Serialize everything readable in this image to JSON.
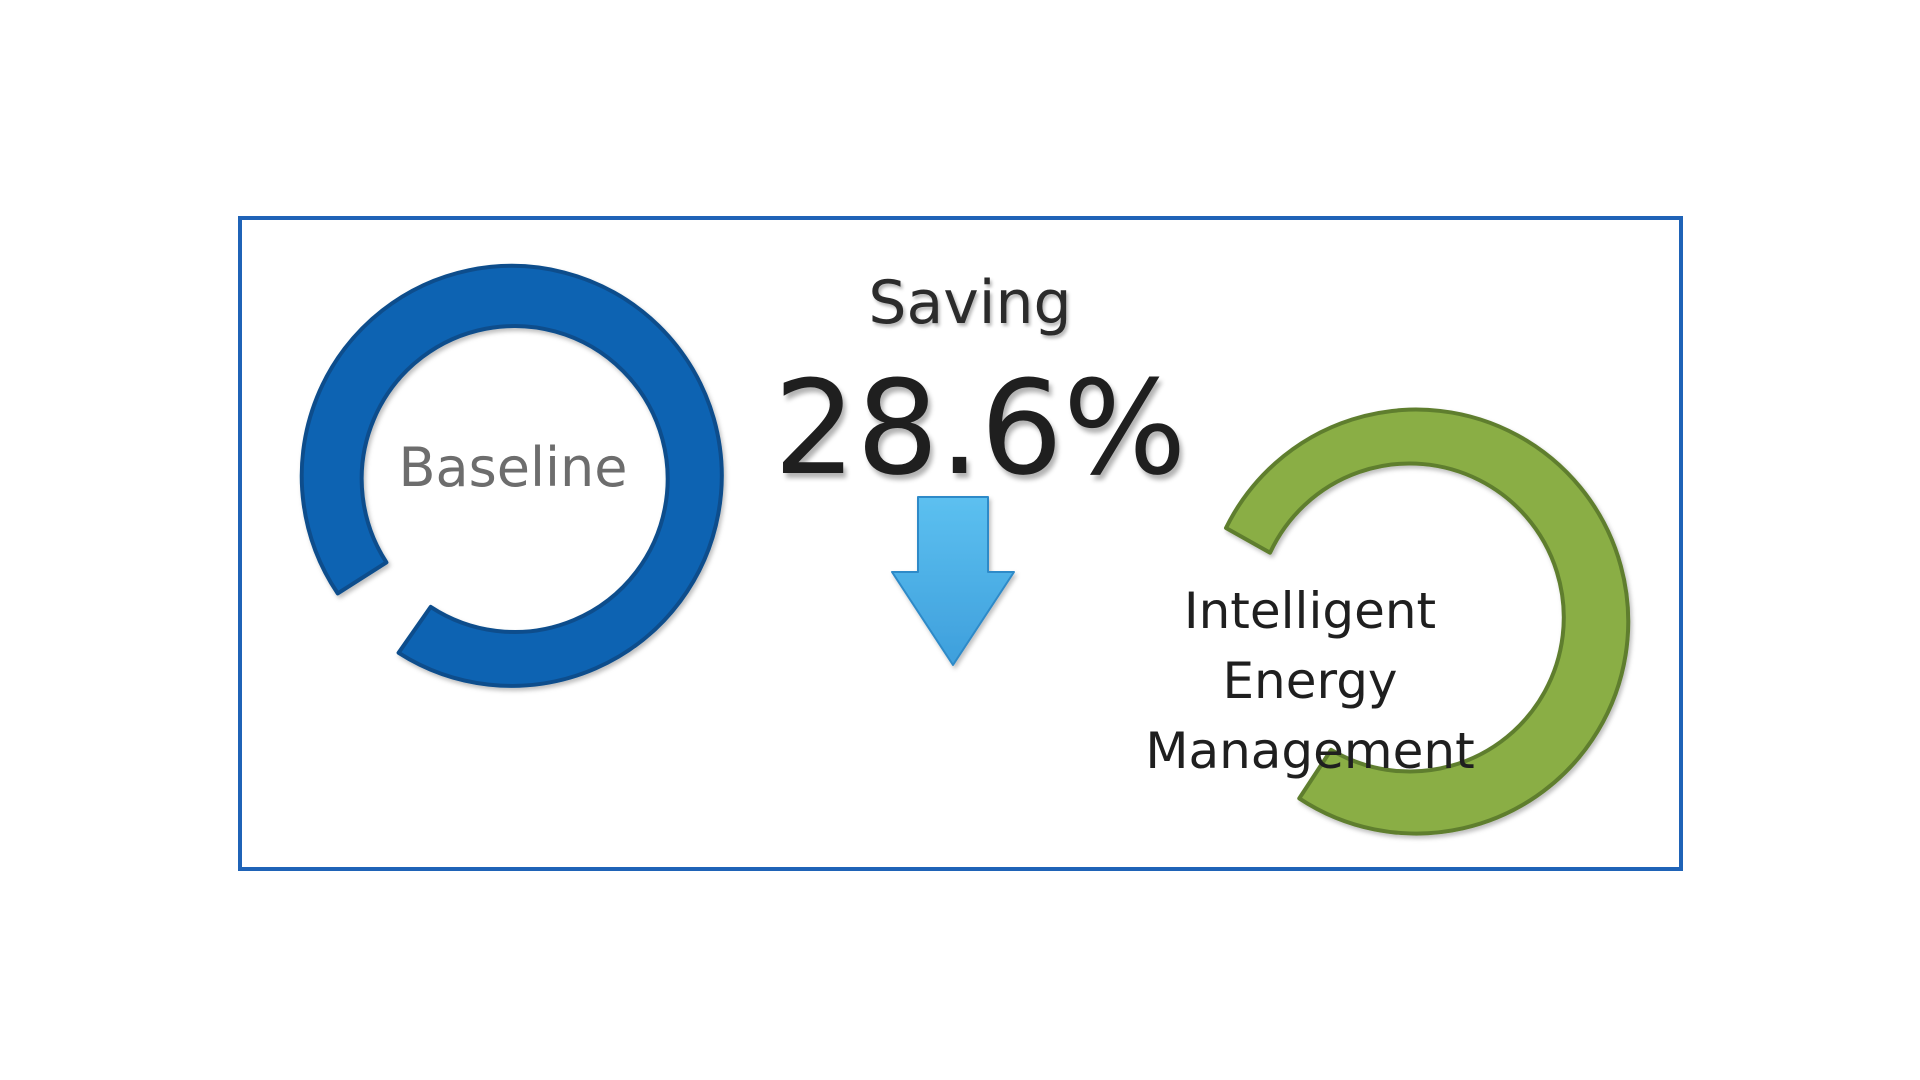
{
  "baseline": {
    "label": "Baseline",
    "color": "#0B63B2",
    "outline": "#0A4D8C"
  },
  "saving": {
    "title": "Saving",
    "value": "28.6%",
    "arrow_color": "#4BB0E8"
  },
  "optimized": {
    "label": "Intelligent Energy Management",
    "color": "#8AAE45",
    "outline": "#5E7E2E"
  },
  "frame": {
    "border_color": "#1F63B7"
  }
}
